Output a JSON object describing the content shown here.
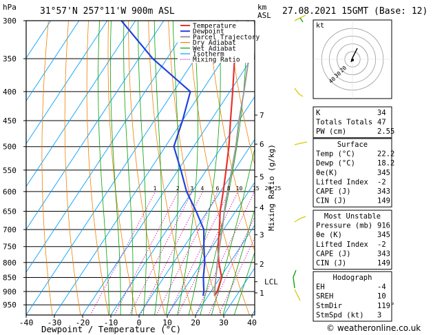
{
  "header": {
    "location": "31°57'N  257°11'W  900m  ASL",
    "datetime": "27.08.2021  15GMT  (Base: 12)",
    "hpa_label": "hPa",
    "km_label": "km",
    "asl_label": "ASL",
    "credit": "© weatheronline.co.uk"
  },
  "chart_data": {
    "type": "skew-T",
    "xlabel": "Dewpoint / Temperature (°C)",
    "ylabel_right": "Mixing Ratio (g/kg)",
    "x_ticks": [
      -40,
      -30,
      -20,
      -10,
      0,
      10,
      20,
      30,
      40
    ],
    "xlim": [
      -40,
      40
    ],
    "pressure_ticks": [
      300,
      350,
      400,
      450,
      500,
      550,
      600,
      650,
      700,
      750,
      800,
      850,
      900,
      950
    ],
    "plim": [
      300,
      990
    ],
    "km_ticks": [
      {
        "label": "7",
        "p": 440
      },
      {
        "label": "6",
        "p": 495
      },
      {
        "label": "5",
        "p": 565
      },
      {
        "label": "4",
        "p": 640
      },
      {
        "label": "3",
        "p": 715
      },
      {
        "label": "2",
        "p": 805
      },
      {
        "label": "LCL",
        "p": 865
      },
      {
        "label": "1",
        "p": 905
      }
    ],
    "mixing_ratio_labels": [
      "1",
      "2",
      "3",
      "4",
      "6",
      "8",
      "10",
      "15",
      "20",
      "25"
    ],
    "mixing_ratio_values": [
      1,
      2,
      3,
      4,
      6,
      8,
      10,
      15,
      20,
      25
    ],
    "legend": [
      {
        "name": "Temperature",
        "color": "#e8302e"
      },
      {
        "name": "Dewpoint",
        "color": "#2040e0"
      },
      {
        "name": "Parcel Trajectory",
        "color": "#999999"
      },
      {
        "name": "Dry Adiabat",
        "color": "#f08000"
      },
      {
        "name": "Wet Adiabat",
        "color": "#00a000"
      },
      {
        "name": "Isotherm",
        "color": "#00a0ff"
      },
      {
        "name": "Mixing Ratio",
        "color": "#d010b0",
        "dotted": true
      }
    ],
    "series": [
      {
        "name": "Temperature",
        "color": "#e8302e",
        "points": [
          [
            916,
            22.2
          ],
          [
            900,
            22.2
          ],
          [
            850,
            20.5
          ],
          [
            800,
            16
          ],
          [
            750,
            12
          ],
          [
            700,
            8.5
          ],
          [
            650,
            4.5
          ],
          [
            600,
            1
          ],
          [
            550,
            -3
          ],
          [
            500,
            -7.5
          ],
          [
            450,
            -13
          ],
          [
            400,
            -19
          ],
          [
            350,
            -26
          ],
          [
            300,
            -34
          ]
        ]
      },
      {
        "name": "Dewpoint",
        "color": "#2040e0",
        "points": [
          [
            916,
            18.2
          ],
          [
            900,
            17.5
          ],
          [
            850,
            14
          ],
          [
            800,
            11
          ],
          [
            750,
            7
          ],
          [
            700,
            3
          ],
          [
            650,
            -4
          ],
          [
            600,
            -12
          ],
          [
            550,
            -19
          ],
          [
            500,
            -27
          ],
          [
            450,
            -30
          ],
          [
            400,
            -34
          ],
          [
            350,
            -55
          ],
          [
            300,
            -75
          ]
        ]
      },
      {
        "name": "Parcel Trajectory",
        "color": "#999999",
        "points": [
          [
            916,
            22.2
          ],
          [
            865,
            19.3
          ],
          [
            800,
            15.5
          ],
          [
            750,
            12.5
          ],
          [
            700,
            9.5
          ],
          [
            650,
            6
          ],
          [
            600,
            2.5
          ],
          [
            550,
            -1
          ],
          [
            500,
            -5
          ],
          [
            450,
            -10
          ],
          [
            400,
            -15
          ],
          [
            350,
            -21
          ],
          [
            300,
            -28
          ]
        ]
      }
    ]
  },
  "wind_barbs_color": "#d8c800",
  "hodograph": {
    "kt_label": "kt",
    "ring_labels": [
      "20",
      "30",
      "40"
    ]
  },
  "indices": [
    {
      "label": "K",
      "value": "34"
    },
    {
      "label": "Totals Totals",
      "value": "47"
    },
    {
      "label": "PW (cm)",
      "value": "2.55"
    }
  ],
  "surface": {
    "title": "Surface",
    "rows": [
      {
        "label": "Temp (°C)",
        "value": "22.2"
      },
      {
        "label": "Dewp (°C)",
        "value": "18.2"
      },
      {
        "label": "θe(K)",
        "value": "345"
      },
      {
        "label": "Lifted Index",
        "value": "-2"
      },
      {
        "label": "CAPE (J)",
        "value": "343"
      },
      {
        "label": "CIN (J)",
        "value": "149"
      }
    ]
  },
  "most_unstable": {
    "title": "Most Unstable",
    "rows": [
      {
        "label": "Pressure (mb)",
        "value": "916"
      },
      {
        "label": "θe (K)",
        "value": "345"
      },
      {
        "label": "Lifted Index",
        "value": "-2"
      },
      {
        "label": "CAPE (J)",
        "value": "343"
      },
      {
        "label": "CIN (J)",
        "value": "149"
      }
    ]
  },
  "hodograph_table": {
    "title": "Hodograph",
    "rows": [
      {
        "label": "EH",
        "value": "-4"
      },
      {
        "label": "SREH",
        "value": "10"
      },
      {
        "label": "StmDir",
        "value": "119°"
      },
      {
        "label": "StmSpd (kt)",
        "value": "3"
      }
    ]
  }
}
